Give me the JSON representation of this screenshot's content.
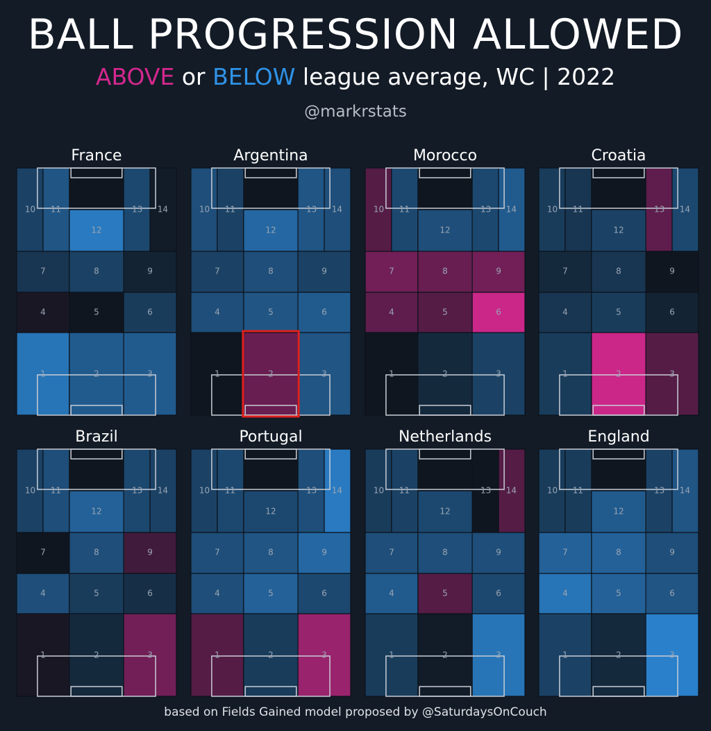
{
  "header": {
    "title": "BALL PROGRESSION ALLOWED",
    "subtitle": {
      "above": "ABOVE",
      "or": " or ",
      "below": "BELOW",
      "rest": " league average, WC | 2022"
    },
    "author": "@markrstats"
  },
  "footer": "based on Fields Gained model proposed by @SaturdaysOnCouch",
  "colors": {
    "background": "#131b26",
    "above": "#d4288f",
    "below": "#2f93e8",
    "neutral": "#10161f",
    "highlight": "#e0201e"
  },
  "chart_data": {
    "type": "heatmap",
    "title": "BALL PROGRESSION ALLOWED",
    "value_meaning": "deviation from league average: positive = ABOVE (pink), negative = BELOW (blue), scale -1 to 1",
    "zone_labels": [
      "1",
      "2",
      "3",
      "4",
      "5",
      "6",
      "7",
      "8",
      "9",
      "10",
      "11",
      "12",
      "13",
      "14"
    ],
    "teams": [
      {
        "name": "France",
        "values": {
          "1": -0.75,
          "2": -0.55,
          "3": -0.55,
          "4": 0.05,
          "5": 0.0,
          "6": -0.3,
          "7": -0.25,
          "8": -0.35,
          "9": -0.1,
          "10": -0.35,
          "11": -0.5,
          "12": -0.8,
          "13": -0.4,
          "14": -0.05
        }
      },
      {
        "name": "Argentina",
        "values": {
          "1": 0.0,
          "2": 0.45,
          "3": -0.5,
          "4": -0.45,
          "5": -0.5,
          "6": -0.55,
          "7": -0.35,
          "8": -0.45,
          "9": -0.35,
          "10": -0.45,
          "11": -0.35,
          "12": -0.65,
          "13": -0.5,
          "14": -0.45
        },
        "highlight_zone": "2"
      },
      {
        "name": "Morocco",
        "values": {
          "1": 0.0,
          "2": -0.15,
          "3": -0.35,
          "4": 0.4,
          "5": 0.35,
          "6": 0.95,
          "7": 0.5,
          "8": 0.45,
          "9": 0.5,
          "10": 0.35,
          "11": -0.4,
          "12": -0.45,
          "13": -0.4,
          "14": -0.55
        }
      },
      {
        "name": "Croatia",
        "values": {
          "1": -0.3,
          "2": 0.95,
          "3": 0.35,
          "4": -0.25,
          "5": -0.3,
          "6": -0.1,
          "7": -0.15,
          "8": -0.25,
          "9": 0.0,
          "10": -0.3,
          "11": -0.25,
          "12": -0.35,
          "13": 0.4,
          "14": -0.4
        }
      },
      {
        "name": "Brazil",
        "values": {
          "1": 0.05,
          "2": -0.15,
          "3": 0.5,
          "4": -0.45,
          "5": -0.3,
          "6": -0.2,
          "7": 0.0,
          "8": -0.45,
          "9": 0.25,
          "10": -0.35,
          "11": -0.45,
          "12": -0.6,
          "13": -0.4,
          "14": -0.35
        }
      },
      {
        "name": "Portugal",
        "values": {
          "1": 0.35,
          "2": -0.3,
          "3": 0.7,
          "4": -0.45,
          "5": -0.6,
          "6": -0.4,
          "7": -0.45,
          "8": -0.5,
          "9": -0.65,
          "10": -0.35,
          "11": -0.4,
          "12": -0.4,
          "13": -0.45,
          "14": -0.8
        }
      },
      {
        "name": "Netherlands",
        "values": {
          "1": -0.3,
          "2": -0.05,
          "3": -0.75,
          "4": -0.55,
          "5": 0.35,
          "6": -0.4,
          "7": -0.45,
          "8": -0.45,
          "9": -0.45,
          "10": -0.3,
          "11": -0.35,
          "12": -0.4,
          "13": 0.0,
          "14": 0.35
        }
      },
      {
        "name": "England",
        "values": {
          "1": -0.35,
          "2": -0.15,
          "3": -0.85,
          "4": -0.75,
          "5": -0.6,
          "6": -0.5,
          "7": -0.6,
          "8": -0.6,
          "9": -0.45,
          "10": -0.3,
          "11": -0.3,
          "12": -0.55,
          "13": -0.35,
          "14": -0.5
        }
      }
    ]
  }
}
